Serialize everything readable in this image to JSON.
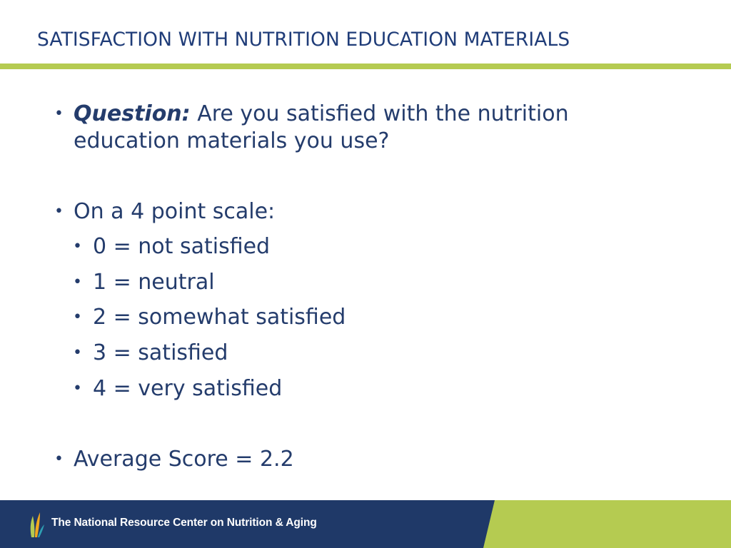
{
  "header": {
    "title": "SATISFACTION WITH NUTRITION EDUCATION MATERIALS"
  },
  "content": {
    "question_label": "Question:",
    "question_line1": " Are you satisfied with the nutrition",
    "question_line2": "education materials you use?",
    "scale_intro": "On a 4 point scale:",
    "scale_items": [
      "0 = not satisfied",
      "1 = neutral",
      "2 = somewhat satisfied",
      "3 = satisfied",
      "4 = very satisfied"
    ],
    "average": "Average Score = 2.2"
  },
  "footer": {
    "organization": "The National Resource Center on Nutrition & Aging"
  },
  "colors": {
    "title": "#1f3c78",
    "text": "#243c6c",
    "accent_green": "#b5cb51",
    "footer_navy": "#1f3968"
  }
}
